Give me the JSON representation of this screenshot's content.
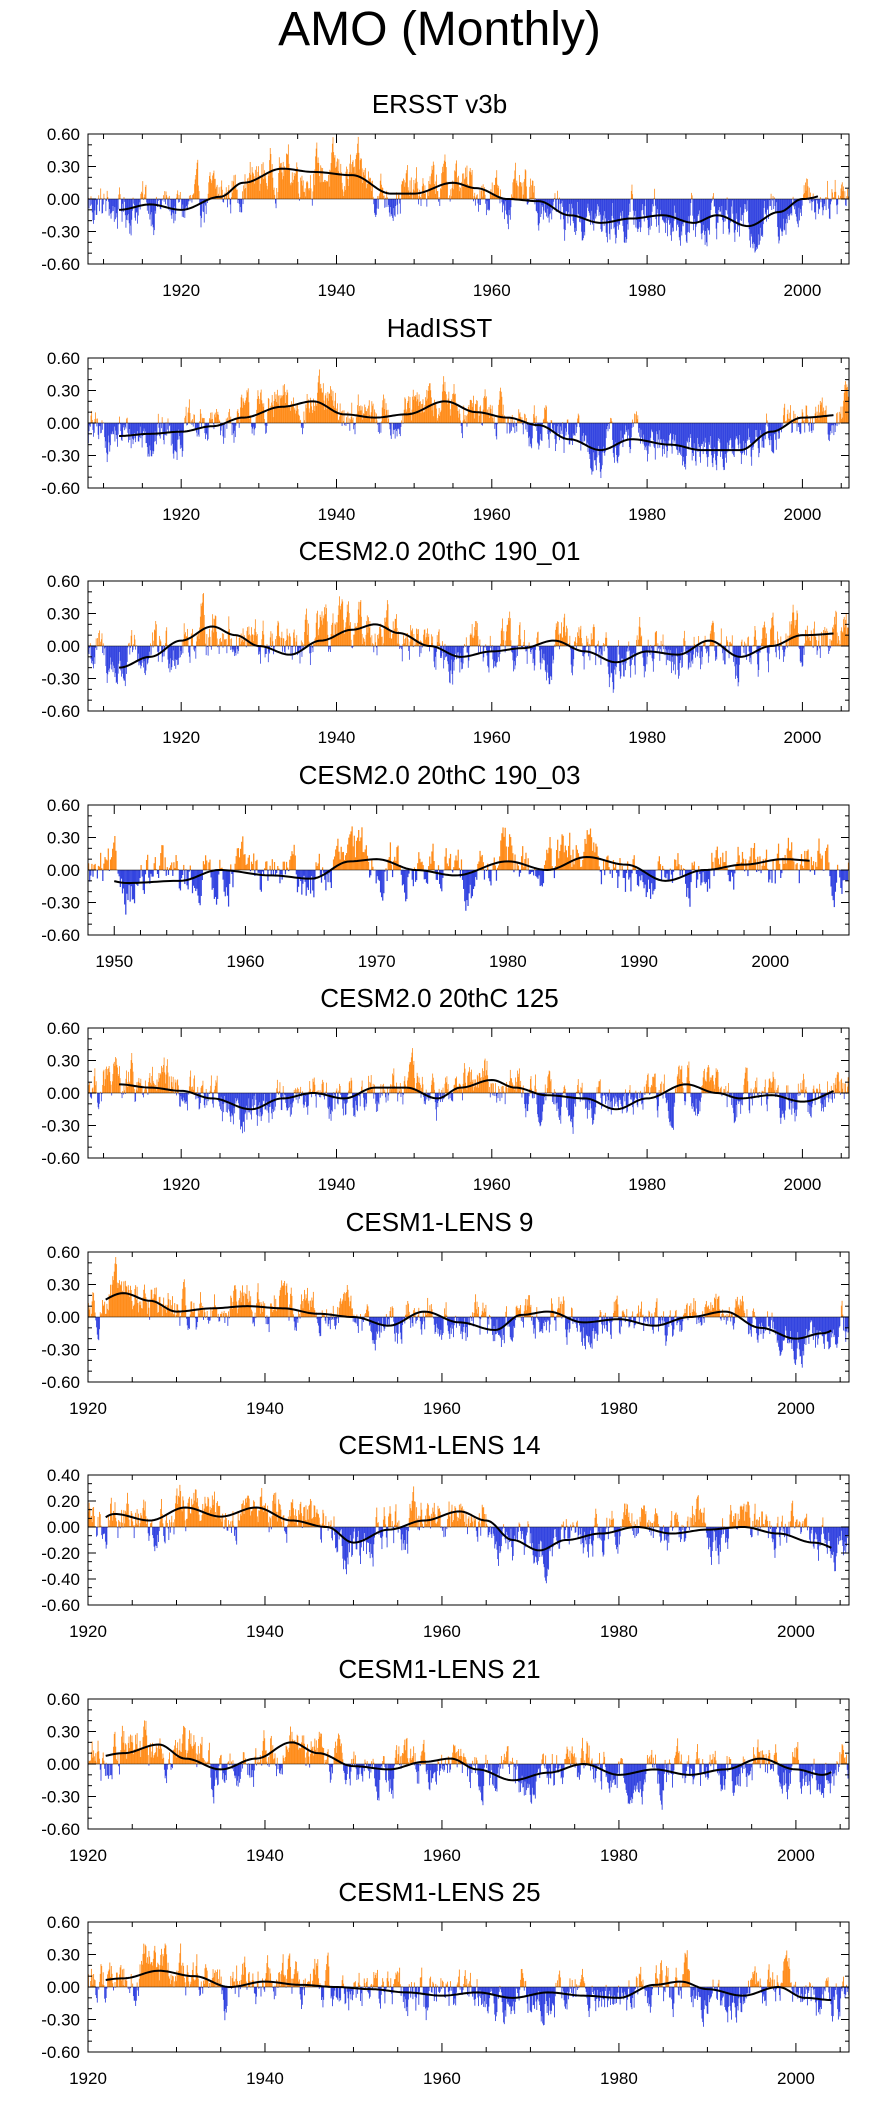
{
  "title": "AMO (Monthly)",
  "colors": {
    "positive": "#ff8c1a",
    "negative": "#3344e0",
    "smooth": "#000000",
    "frame": "#000000"
  },
  "chart_data": [
    {
      "type": "bar",
      "title": "ERSST v3b",
      "xlim": [
        1908,
        2006
      ],
      "ylim": [
        -0.6,
        0.6
      ],
      "xticks": [
        1920,
        1940,
        1960,
        1980,
        2000
      ],
      "yticks": [
        0.6,
        0.3,
        0.0,
        -0.3,
        -0.6
      ],
      "yticklabels": [
        "0.60",
        "0.30",
        "0.00",
        "-0.30",
        "-0.60"
      ],
      "smooth_start": 1912,
      "smooth_end": 2002,
      "noise": 0.14,
      "anchors": [
        [
          1908,
          -0.05
        ],
        [
          1912,
          -0.1
        ],
        [
          1916,
          -0.05
        ],
        [
          1920,
          -0.1
        ],
        [
          1925,
          0.02
        ],
        [
          1928,
          0.15
        ],
        [
          1933,
          0.28
        ],
        [
          1937,
          0.25
        ],
        [
          1942,
          0.22
        ],
        [
          1947,
          0.05
        ],
        [
          1950,
          0.05
        ],
        [
          1955,
          0.15
        ],
        [
          1958,
          0.1
        ],
        [
          1962,
          0.0
        ],
        [
          1966,
          -0.02
        ],
        [
          1970,
          -0.15
        ],
        [
          1974,
          -0.22
        ],
        [
          1978,
          -0.18
        ],
        [
          1982,
          -0.15
        ],
        [
          1986,
          -0.22
        ],
        [
          1989,
          -0.15
        ],
        [
          1993,
          -0.25
        ],
        [
          1997,
          -0.12
        ],
        [
          2000,
          0.0
        ],
        [
          2006,
          0.1
        ]
      ]
    },
    {
      "type": "bar",
      "title": "HadISST",
      "xlim": [
        1908,
        2006
      ],
      "ylim": [
        -0.6,
        0.6
      ],
      "xticks": [
        1920,
        1940,
        1960,
        1980,
        2000
      ],
      "yticks": [
        0.6,
        0.3,
        0.0,
        -0.3,
        -0.6
      ],
      "yticklabels": [
        "0.60",
        "0.30",
        "0.00",
        "-0.30",
        "-0.60"
      ],
      "smooth_start": 1912,
      "smooth_end": 2004,
      "noise": 0.13,
      "anchors": [
        [
          1908,
          -0.08
        ],
        [
          1912,
          -0.12
        ],
        [
          1916,
          -0.1
        ],
        [
          1920,
          -0.08
        ],
        [
          1924,
          -0.03
        ],
        [
          1928,
          0.05
        ],
        [
          1933,
          0.15
        ],
        [
          1937,
          0.2
        ],
        [
          1941,
          0.08
        ],
        [
          1945,
          0.05
        ],
        [
          1949,
          0.08
        ],
        [
          1954,
          0.2
        ],
        [
          1958,
          0.1
        ],
        [
          1962,
          0.05
        ],
        [
          1966,
          -0.02
        ],
        [
          1970,
          -0.15
        ],
        [
          1974,
          -0.25
        ],
        [
          1978,
          -0.15
        ],
        [
          1983,
          -0.2
        ],
        [
          1987,
          -0.25
        ],
        [
          1992,
          -0.25
        ],
        [
          1996,
          -0.08
        ],
        [
          2000,
          0.05
        ],
        [
          2006,
          0.08
        ]
      ]
    },
    {
      "type": "bar",
      "title": "CESM2.0 20thC 190_01",
      "xlim": [
        1908,
        2006
      ],
      "ylim": [
        -0.6,
        0.6
      ],
      "xticks": [
        1920,
        1940,
        1960,
        1980,
        2000
      ],
      "yticks": [
        0.6,
        0.3,
        0.0,
        -0.3,
        -0.6
      ],
      "yticklabels": [
        "0.60",
        "0.30",
        "0.00",
        "-0.30",
        "-0.60"
      ],
      "smooth_start": 1912,
      "smooth_end": 2004,
      "noise": 0.15,
      "anchors": [
        [
          1908,
          -0.05
        ],
        [
          1912,
          -0.2
        ],
        [
          1916,
          -0.1
        ],
        [
          1920,
          0.05
        ],
        [
          1924,
          0.18
        ],
        [
          1927,
          0.1
        ],
        [
          1930,
          0.0
        ],
        [
          1934,
          -0.08
        ],
        [
          1938,
          0.05
        ],
        [
          1942,
          0.15
        ],
        [
          1945,
          0.2
        ],
        [
          1948,
          0.12
        ],
        [
          1952,
          0.0
        ],
        [
          1956,
          -0.1
        ],
        [
          1960,
          -0.05
        ],
        [
          1964,
          -0.02
        ],
        [
          1968,
          0.05
        ],
        [
          1972,
          -0.05
        ],
        [
          1976,
          -0.15
        ],
        [
          1980,
          -0.05
        ],
        [
          1984,
          -0.08
        ],
        [
          1988,
          0.05
        ],
        [
          1992,
          -0.1
        ],
        [
          1996,
          0.0
        ],
        [
          2000,
          0.1
        ],
        [
          2006,
          0.12
        ]
      ]
    },
    {
      "type": "bar",
      "title": "CESM2.0 20thC 190_03",
      "xlim": [
        1948,
        2006
      ],
      "ylim": [
        -0.6,
        0.6
      ],
      "xticks": [
        1950,
        1960,
        1970,
        1980,
        1990,
        2000
      ],
      "yticks": [
        0.6,
        0.3,
        0.0,
        -0.3,
        -0.6
      ],
      "yticklabels": [
        "0.60",
        "0.30",
        "0.00",
        "-0.30",
        "-0.60"
      ],
      "smooth_start": 1950,
      "smooth_end": 2003,
      "noise": 0.16,
      "anchors": [
        [
          1948,
          -0.05
        ],
        [
          1951,
          -0.12
        ],
        [
          1955,
          -0.1
        ],
        [
          1958,
          0.0
        ],
        [
          1962,
          -0.05
        ],
        [
          1965,
          -0.08
        ],
        [
          1968,
          0.08
        ],
        [
          1970,
          0.1
        ],
        [
          1973,
          0.0
        ],
        [
          1976,
          -0.05
        ],
        [
          1980,
          0.08
        ],
        [
          1983,
          0.0
        ],
        [
          1986,
          0.12
        ],
        [
          1989,
          0.05
        ],
        [
          1992,
          -0.1
        ],
        [
          1995,
          0.0
        ],
        [
          1998,
          0.05
        ],
        [
          2001,
          0.1
        ],
        [
          2004,
          0.08
        ],
        [
          2006,
          0.05
        ]
      ]
    },
    {
      "type": "bar",
      "title": "CESM2.0 20thC 125",
      "xlim": [
        1908,
        2006
      ],
      "ylim": [
        -0.6,
        0.6
      ],
      "xticks": [
        1920,
        1940,
        1960,
        1980,
        2000
      ],
      "yticks": [
        0.6,
        0.3,
        0.0,
        -0.3,
        -0.6
      ],
      "yticklabels": [
        "0.60",
        "0.30",
        "0.00",
        "-0.30",
        "-0.60"
      ],
      "smooth_start": 1912,
      "smooth_end": 2004,
      "noise": 0.13,
      "anchors": [
        [
          1908,
          0.08
        ],
        [
          1912,
          0.08
        ],
        [
          1916,
          0.05
        ],
        [
          1920,
          0.02
        ],
        [
          1924,
          -0.05
        ],
        [
          1929,
          -0.15
        ],
        [
          1933,
          -0.05
        ],
        [
          1937,
          0.0
        ],
        [
          1941,
          -0.05
        ],
        [
          1945,
          0.05
        ],
        [
          1949,
          0.05
        ],
        [
          1953,
          -0.05
        ],
        [
          1956,
          0.05
        ],
        [
          1960,
          0.12
        ],
        [
          1963,
          0.05
        ],
        [
          1967,
          -0.02
        ],
        [
          1972,
          -0.05
        ],
        [
          1976,
          -0.15
        ],
        [
          1980,
          -0.05
        ],
        [
          1985,
          0.08
        ],
        [
          1989,
          0.0
        ],
        [
          1992,
          -0.05
        ],
        [
          1996,
          -0.02
        ],
        [
          2000,
          -0.08
        ],
        [
          2006,
          0.05
        ]
      ]
    },
    {
      "type": "bar",
      "title": "CESM1-LENS 9",
      "xlim": [
        1920,
        2006
      ],
      "ylim": [
        -0.6,
        0.6
      ],
      "xticks": [
        1920,
        1940,
        1960,
        1980,
        2000
      ],
      "yticks": [
        0.6,
        0.3,
        0.0,
        -0.3,
        -0.6
      ],
      "yticklabels": [
        "0.60",
        "0.30",
        "0.00",
        "-0.30",
        "-0.60"
      ],
      "smooth_start": 1922,
      "smooth_end": 2004,
      "noise": 0.13,
      "anchors": [
        [
          1920,
          0.1
        ],
        [
          1924,
          0.22
        ],
        [
          1927,
          0.15
        ],
        [
          1930,
          0.05
        ],
        [
          1934,
          0.08
        ],
        [
          1938,
          0.1
        ],
        [
          1942,
          0.08
        ],
        [
          1946,
          0.03
        ],
        [
          1950,
          0.0
        ],
        [
          1954,
          -0.08
        ],
        [
          1958,
          0.05
        ],
        [
          1962,
          -0.05
        ],
        [
          1966,
          -0.12
        ],
        [
          1969,
          0.02
        ],
        [
          1972,
          0.05
        ],
        [
          1976,
          -0.05
        ],
        [
          1980,
          -0.02
        ],
        [
          1984,
          -0.08
        ],
        [
          1988,
          0.0
        ],
        [
          1992,
          0.05
        ],
        [
          1996,
          -0.1
        ],
        [
          2000,
          -0.2
        ],
        [
          2003,
          -0.15
        ],
        [
          2006,
          -0.05
        ]
      ]
    },
    {
      "type": "bar",
      "title": "CESM1-LENS 14",
      "xlim": [
        1920,
        2006
      ],
      "ylim": [
        -0.6,
        0.4
      ],
      "xticks": [
        1920,
        1940,
        1960,
        1980,
        2000
      ],
      "yticks": [
        0.4,
        0.2,
        0.0,
        -0.2,
        -0.4,
        -0.6
      ],
      "yticklabels": [
        "0.40",
        "0.20",
        "0.00",
        "-0.20",
        "-0.40",
        "-0.60"
      ],
      "smooth_start": 1922,
      "smooth_end": 2004,
      "noise": 0.12,
      "anchors": [
        [
          1920,
          0.0
        ],
        [
          1923,
          0.1
        ],
        [
          1927,
          0.05
        ],
        [
          1931,
          0.15
        ],
        [
          1935,
          0.08
        ],
        [
          1939,
          0.15
        ],
        [
          1943,
          0.05
        ],
        [
          1947,
          0.0
        ],
        [
          1950,
          -0.12
        ],
        [
          1954,
          -0.02
        ],
        [
          1958,
          0.05
        ],
        [
          1962,
          0.12
        ],
        [
          1965,
          0.05
        ],
        [
          1968,
          -0.1
        ],
        [
          1971,
          -0.18
        ],
        [
          1974,
          -0.1
        ],
        [
          1978,
          -0.05
        ],
        [
          1982,
          0.0
        ],
        [
          1986,
          -0.05
        ],
        [
          1990,
          -0.02
        ],
        [
          1994,
          0.0
        ],
        [
          1998,
          -0.05
        ],
        [
          2002,
          -0.12
        ],
        [
          2006,
          -0.2
        ]
      ]
    },
    {
      "type": "bar",
      "title": "CESM1-LENS 21",
      "xlim": [
        1920,
        2006
      ],
      "ylim": [
        -0.6,
        0.6
      ],
      "xticks": [
        1920,
        1940,
        1960,
        1980,
        2000
      ],
      "yticks": [
        0.6,
        0.3,
        0.0,
        -0.3,
        -0.6
      ],
      "yticklabels": [
        "0.60",
        "0.30",
        "0.00",
        "-0.30",
        "-0.60"
      ],
      "smooth_start": 1922,
      "smooth_end": 2004,
      "noise": 0.14,
      "anchors": [
        [
          1920,
          0.05
        ],
        [
          1924,
          0.1
        ],
        [
          1928,
          0.18
        ],
        [
          1931,
          0.05
        ],
        [
          1935,
          -0.05
        ],
        [
          1939,
          0.05
        ],
        [
          1943,
          0.2
        ],
        [
          1946,
          0.1
        ],
        [
          1950,
          -0.02
        ],
        [
          1954,
          -0.05
        ],
        [
          1958,
          0.02
        ],
        [
          1961,
          0.05
        ],
        [
          1964,
          -0.05
        ],
        [
          1968,
          -0.15
        ],
        [
          1972,
          -0.08
        ],
        [
          1976,
          0.0
        ],
        [
          1980,
          -0.1
        ],
        [
          1984,
          -0.05
        ],
        [
          1988,
          -0.1
        ],
        [
          1992,
          -0.05
        ],
        [
          1996,
          0.05
        ],
        [
          2000,
          -0.05
        ],
        [
          2003,
          -0.1
        ],
        [
          2006,
          0.0
        ]
      ]
    },
    {
      "type": "bar",
      "title": "CESM1-LENS 25",
      "xlim": [
        1920,
        2006
      ],
      "ylim": [
        -0.6,
        0.6
      ],
      "xticks": [
        1920,
        1940,
        1960,
        1980,
        2000
      ],
      "yticks": [
        0.6,
        0.3,
        0.0,
        -0.3,
        -0.6
      ],
      "yticklabels": [
        "0.60",
        "0.30",
        "0.00",
        "-0.30",
        "-0.60"
      ],
      "smooth_start": 1922,
      "smooth_end": 2004,
      "noise": 0.14,
      "anchors": [
        [
          1920,
          0.05
        ],
        [
          1924,
          0.08
        ],
        [
          1928,
          0.15
        ],
        [
          1932,
          0.1
        ],
        [
          1936,
          0.0
        ],
        [
          1940,
          0.05
        ],
        [
          1944,
          0.02
        ],
        [
          1948,
          0.0
        ],
        [
          1952,
          -0.02
        ],
        [
          1956,
          -0.05
        ],
        [
          1960,
          -0.08
        ],
        [
          1964,
          -0.05
        ],
        [
          1968,
          -0.1
        ],
        [
          1972,
          -0.05
        ],
        [
          1976,
          -0.08
        ],
        [
          1980,
          -0.1
        ],
        [
          1984,
          0.02
        ],
        [
          1987,
          0.05
        ],
        [
          1990,
          -0.02
        ],
        [
          1994,
          -0.08
        ],
        [
          1998,
          0.0
        ],
        [
          2001,
          -0.1
        ],
        [
          2004,
          -0.12
        ],
        [
          2006,
          -0.05
        ]
      ]
    }
  ]
}
